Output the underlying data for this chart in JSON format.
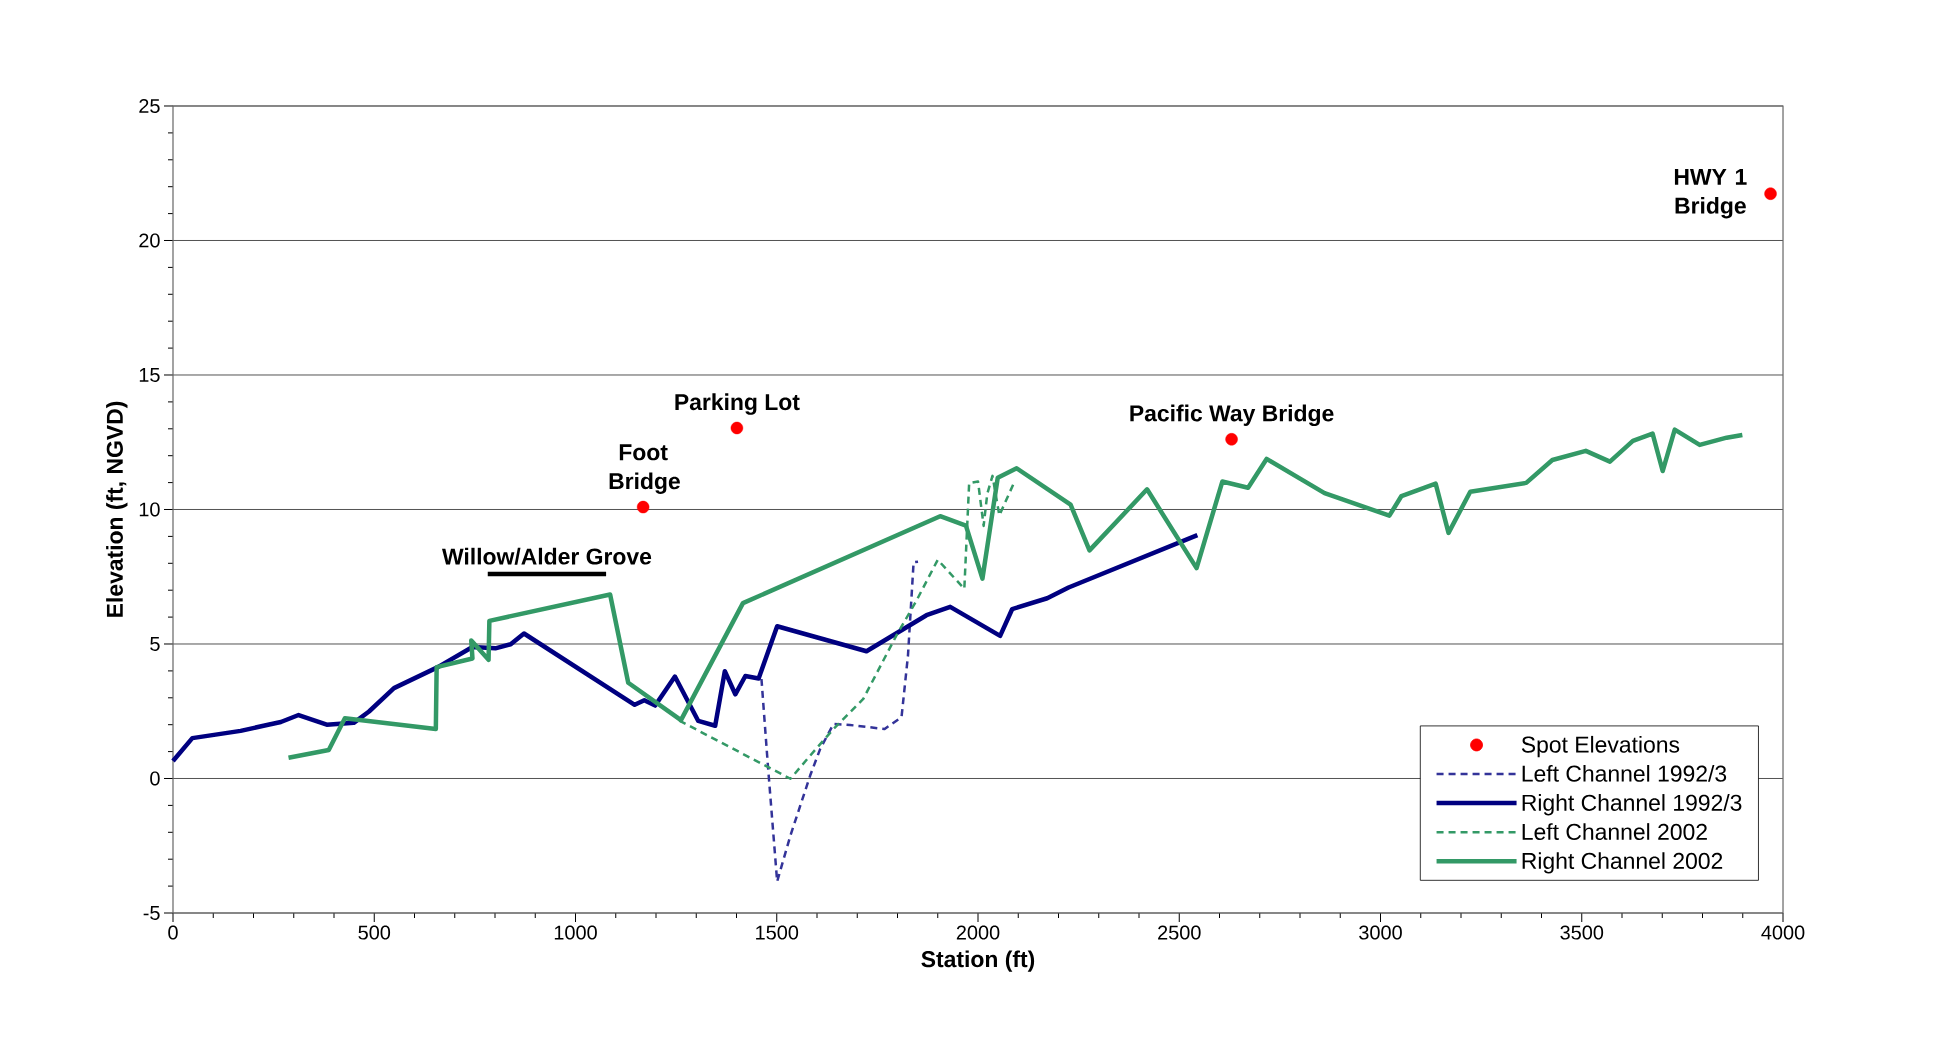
{
  "chart_data": {
    "type": "line",
    "xlabel": "Station (ft)",
    "ylabel": "Elevation (ft, NGVD)",
    "xlim": [
      0,
      4000
    ],
    "xticks": [
      0,
      500,
      1000,
      1500,
      2000,
      2500,
      3000,
      3500,
      4000
    ],
    "ylim": [
      -5,
      25
    ],
    "yticks": [
      -5,
      0,
      5,
      10,
      15,
      20,
      25
    ],
    "grid": "y",
    "legend": "bottom right",
    "series": [
      {
        "name": "Spot Elevations",
        "type": "scatter",
        "marker": "circle",
        "color": "#ff0000",
        "x": [
          1168,
          1401,
          2630,
          3969
        ],
        "values": [
          10.09,
          13.03,
          12.61,
          21.74
        ]
      },
      {
        "name": "Left Channel 1992/3",
        "line_style": "dashed",
        "color": "#333399",
        "x": [
          1462,
          1478,
          1501,
          1534,
          1583,
          1608,
          1641,
          1682,
          1768,
          1810,
          1826,
          1840,
          1851
        ],
        "values": [
          3.7,
          0.48,
          -3.83,
          -2.12,
          0.11,
          1.1,
          2.03,
          1.99,
          1.84,
          2.28,
          4.57,
          8.04,
          8.06
        ]
      },
      {
        "name": "Right Channel 1992/3",
        "line_style": "solid",
        "color": "#000080",
        "x": [
          0,
          48,
          168,
          225,
          268,
          312,
          382,
          449,
          487,
          549,
          658,
          744,
          801,
          839,
          872,
          1147,
          1171,
          1198,
          1247,
          1305,
          1347,
          1371,
          1397,
          1422,
          1455,
          1501,
          1723,
          1872,
          1931,
          2055,
          2085,
          2172,
          2225,
          2545
        ],
        "values": [
          0.65,
          1.5,
          1.77,
          1.96,
          2.1,
          2.36,
          2.0,
          2.07,
          2.49,
          3.36,
          4.14,
          4.89,
          4.84,
          4.99,
          5.39,
          2.74,
          2.91,
          2.71,
          3.79,
          2.14,
          1.96,
          3.99,
          3.13,
          3.81,
          3.72,
          5.66,
          4.73,
          6.07,
          6.38,
          5.3,
          6.3,
          6.7,
          7.1,
          9.05
        ]
      },
      {
        "name": "Left Channel 2002",
        "line_style": "dashed",
        "color": "#339966",
        "x": [
          1258,
          1534,
          1583,
          1641,
          1715,
          1797,
          1847,
          1900,
          1966,
          1978,
          2000,
          2014,
          2023,
          2036,
          2053,
          2089
        ],
        "values": [
          2.15,
          -0.01,
          0.85,
          1.84,
          2.96,
          5.31,
          6.61,
          8.13,
          7.05,
          10.98,
          11.04,
          9.39,
          10.58,
          11.25,
          9.78,
          10.98
        ]
      },
      {
        "name": "Right Channel 2002",
        "line_style": "solid",
        "color": "#339966",
        "x": [
          287,
          387,
          427,
          653,
          655,
          744,
          741,
          784,
          786,
          1086,
          1131,
          1262,
          1416,
          1906,
          1970,
          2011,
          2049,
          2096,
          2230,
          2277,
          2420,
          2543,
          2607,
          2671,
          2717,
          2861,
          3022,
          3052,
          3137,
          3169,
          3223,
          3362,
          3427,
          3510,
          3570,
          3627,
          3676,
          3701,
          3731,
          3793,
          3860,
          3899
        ],
        "values": [
          0.77,
          1.06,
          2.24,
          1.84,
          4.14,
          4.46,
          5.13,
          4.41,
          5.86,
          6.84,
          3.56,
          2.17,
          6.52,
          9.75,
          9.4,
          7.43,
          11.18,
          11.53,
          10.18,
          8.48,
          10.75,
          7.82,
          11.04,
          10.81,
          11.88,
          10.61,
          9.77,
          10.5,
          10.96,
          9.13,
          10.66,
          10.99,
          11.84,
          12.18,
          11.78,
          12.55,
          12.82,
          11.43,
          12.97,
          12.4,
          12.67,
          12.77
        ]
      },
      {
        "line_style": "solid",
        "color": "#000000",
        "x": [
          782,
          1076
        ],
        "values": [
          7.6,
          7.6
        ]
      }
    ],
    "annotations": [
      {
        "text": "Foot Bridge",
        "x": 1168,
        "y": 10.09
      },
      {
        "text": "Parking Lot",
        "x": 1401,
        "y": 13.03
      },
      {
        "text": "Pacific Way Bridge",
        "x": 2630,
        "y": 12.61
      },
      {
        "text": "HWY 1 Bridge",
        "x": 3969,
        "y": 21.74
      },
      {
        "text": "Willow/Alder Grove",
        "x": 929,
        "y": 7.6
      }
    ]
  }
}
